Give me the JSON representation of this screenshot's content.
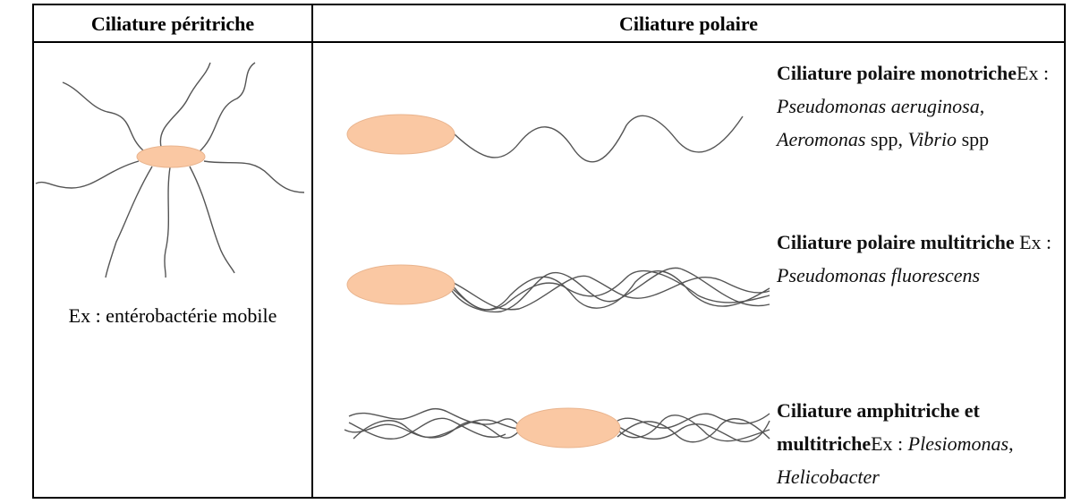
{
  "header": {
    "columns": [
      "Ciliature péritriche",
      "Ciliature polaire"
    ]
  },
  "peritrichous": {
    "example": "Ex : entérobactérie mobile"
  },
  "polar": {
    "rows": [
      {
        "runs": [
          {
            "text": "Ciliature polaire monotriche",
            "style": "bold"
          },
          {
            "text": "Ex : ",
            "style": "normal"
          },
          {
            "text": "Pseudomonas aeruginosa",
            "style": "italic"
          },
          {
            "text": ", ",
            "style": "normal"
          },
          {
            "text": "Aeromonas",
            "style": "italic"
          },
          {
            "text": " spp, ",
            "style": "normal"
          },
          {
            "text": "Vibrio",
            "style": "italic"
          },
          {
            "text": " spp",
            "style": "normal"
          }
        ]
      },
      {
        "runs": [
          {
            "text": "Ciliature polaire multitriche",
            "style": "bold"
          },
          {
            "text": " Ex : ",
            "style": "normal"
          },
          {
            "text": "Pseudomonas fluorescens",
            "style": "italic"
          }
        ]
      },
      {
        "runs": [
          {
            "text": "Ciliature amphitriche et multitriche",
            "style": "bold"
          },
          {
            "text": "Ex : ",
            "style": "normal"
          },
          {
            "text": "Plesiomonas",
            "style": "italic"
          },
          {
            "text": ", ",
            "style": "normal"
          },
          {
            "text": "Helicobacter",
            "style": "italic"
          }
        ]
      }
    ]
  }
}
